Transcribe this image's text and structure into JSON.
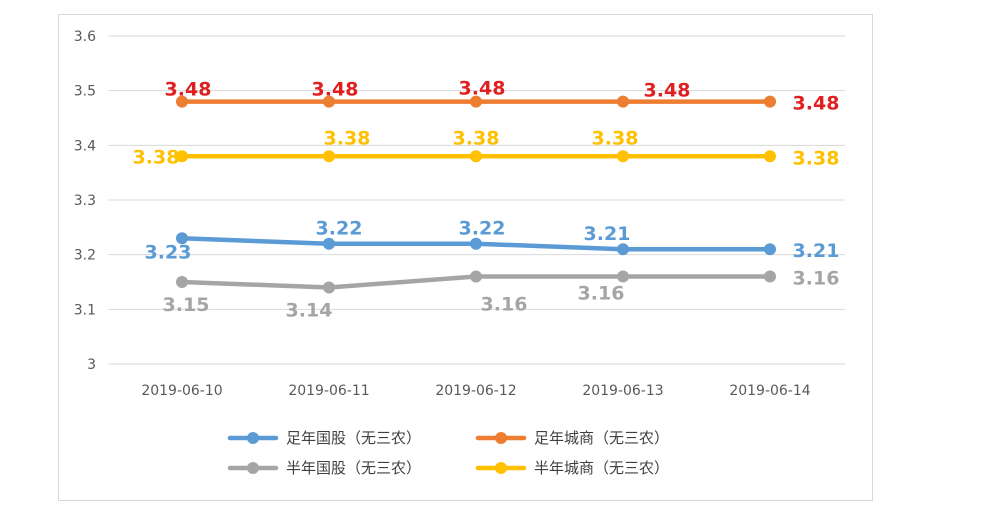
{
  "chart_data": {
    "type": "line",
    "categories": [
      "2019-06-10",
      "2019-06-11",
      "2019-06-12",
      "2019-06-13",
      "2019-06-14"
    ],
    "ylim": [
      3,
      3.6
    ],
    "yticks": [
      "3",
      "3.1",
      "3.2",
      "3.3",
      "3.4",
      "3.5",
      "3.6"
    ],
    "grid": true,
    "legend_position": "bottom",
    "series": [
      {
        "name": "足年国股（无三农）",
        "color": "#5b9bd5",
        "label_color": "#5b9bd5",
        "values": [
          3.23,
          3.22,
          3.22,
          3.21,
          3.21
        ],
        "labels": [
          "3.23",
          "3.22",
          "3.22",
          "3.21",
          "3.21"
        ]
      },
      {
        "name": "足年城商（无三农）",
        "color": "#ed7d31",
        "label_color": "#e02020",
        "values": [
          3.48,
          3.48,
          3.48,
          3.48,
          3.48
        ],
        "labels": [
          "3.48",
          "3.48",
          "3.48",
          "3.48",
          "3.48"
        ]
      },
      {
        "name": "半年国股（无三农）",
        "color": "#a5a5a5",
        "label_color": "#a5a5a5",
        "values": [
          3.15,
          3.14,
          3.16,
          3.16,
          3.16
        ],
        "labels": [
          "3.15",
          "3.14",
          "3.16",
          "3.16",
          "3.16"
        ]
      },
      {
        "name": "半年城商（无三农）",
        "color": "#ffc000",
        "label_color": "#ffc000",
        "values": [
          3.38,
          3.38,
          3.38,
          3.38,
          3.38
        ],
        "labels": [
          "3.38",
          "3.38",
          "3.38",
          "3.38",
          "3.38"
        ]
      }
    ]
  }
}
